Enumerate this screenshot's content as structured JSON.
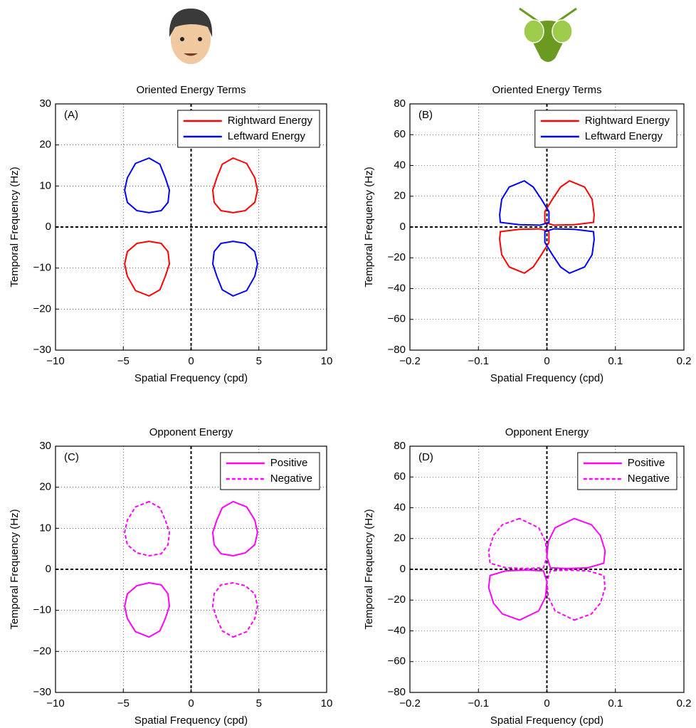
{
  "chart_data": [
    {
      "type": "line",
      "title": "Oriented Energy Terms",
      "panel_label": "(A)",
      "xlabel": "Spatial Frequency (cpd)",
      "ylabel": "Temporal Frequency (Hz)",
      "xlim": [
        -10,
        10
      ],
      "ylim": [
        -30,
        30
      ],
      "xticks": [
        {
          "value": -10,
          "label": "−10"
        },
        {
          "value": -5,
          "label": "−5"
        },
        0,
        5,
        10
      ],
      "yticks": [
        {
          "value": -30,
          "label": "−30"
        },
        {
          "value": -20,
          "label": "−20"
        },
        {
          "value": -10,
          "label": "−10"
        },
        0,
        10,
        20,
        30
      ],
      "grid": true,
      "legend": "upper right",
      "series": [
        {
          "name": "Rightward Energy",
          "color": "#ff0000",
          "dash": false,
          "contours": [
            {
              "x": [
                3.1,
                4.1,
                4.7,
                4.9,
                4.7,
                4.0,
                3.1,
                2.2,
                1.7,
                1.6,
                1.9,
                2.3
              ],
              "y": [
                16.8,
                15.5,
                12,
                9,
                6,
                4,
                3.5,
                4,
                6,
                9,
                12,
                15.3
              ]
            },
            {
              "x": [
                -3.1,
                -4.1,
                -4.7,
                -4.9,
                -4.7,
                -4.0,
                -3.1,
                -2.2,
                -1.7,
                -1.6,
                -1.9,
                -2.3
              ],
              "y": [
                -16.8,
                -15.5,
                -12,
                -9,
                -6,
                -4,
                -3.5,
                -4,
                -6,
                -9,
                -12,
                -15.3
              ]
            }
          ]
        },
        {
          "name": "Leftward Energy",
          "color": "#0000ff",
          "dash": false,
          "contours": [
            {
              "x": [
                -3.1,
                -4.1,
                -4.7,
                -4.9,
                -4.7,
                -4.0,
                -3.1,
                -2.2,
                -1.7,
                -1.6,
                -1.9,
                -2.3
              ],
              "y": [
                16.8,
                15.5,
                12,
                9,
                6,
                4,
                3.5,
                4,
                6,
                9,
                12,
                15.3
              ]
            },
            {
              "x": [
                3.1,
                4.1,
                4.7,
                4.9,
                4.7,
                4.0,
                3.1,
                2.2,
                1.7,
                1.6,
                1.9,
                2.3
              ],
              "y": [
                -16.8,
                -15.5,
                -12,
                -9,
                -6,
                -4,
                -3.5,
                -4,
                -6,
                -9,
                -12,
                -15.3
              ]
            }
          ]
        }
      ]
    },
    {
      "type": "line",
      "title": "Oriented Energy Terms",
      "panel_label": "(B)",
      "xlabel": "Spatial Frequency (cpd)",
      "ylabel": "Temporal Frequency (Hz)",
      "xlim": [
        -0.2,
        0.2
      ],
      "ylim": [
        -80,
        80
      ],
      "xticks": [
        {
          "value": -0.2,
          "label": "−0.2"
        },
        {
          "value": -0.1,
          "label": "−0.1"
        },
        0,
        0.1,
        0.2
      ],
      "yticks": [
        {
          "value": -80,
          "label": "−80"
        },
        {
          "value": -60,
          "label": "−60"
        },
        {
          "value": -40,
          "label": "−40"
        },
        {
          "value": -20,
          "label": "−20"
        },
        0,
        20,
        40,
        60,
        80
      ],
      "grid": true,
      "legend": "upper right",
      "series": [
        {
          "name": "Rightward Energy",
          "color": "#ff0000",
          "dash": false,
          "contours": [
            {
              "x": [
                0.033,
                0.055,
                0.066,
                0.069,
                0.068,
                0.04,
                0.01,
                -0.003,
                -0.003,
                0.008,
                0.02
              ],
              "y": [
                30,
                26,
                18,
                8,
                3,
                1.5,
                1.2,
                3,
                10,
                18,
                26
              ]
            },
            {
              "x": [
                -0.033,
                -0.055,
                -0.066,
                -0.069,
                -0.068,
                -0.04,
                -0.01,
                0.003,
                0.003,
                -0.008,
                -0.02
              ],
              "y": [
                -30,
                -26,
                -18,
                -8,
                -3,
                -1.5,
                -1.2,
                -3,
                -10,
                -18,
                -26
              ]
            }
          ]
        },
        {
          "name": "Leftward Energy",
          "color": "#0000ff",
          "dash": false,
          "contours": [
            {
              "x": [
                -0.033,
                -0.055,
                -0.066,
                -0.069,
                -0.068,
                -0.04,
                -0.01,
                0.003,
                0.003,
                -0.008,
                -0.02
              ],
              "y": [
                30,
                26,
                18,
                8,
                3,
                1.5,
                1.2,
                3,
                10,
                18,
                26
              ]
            },
            {
              "x": [
                0.033,
                0.055,
                0.066,
                0.069,
                0.068,
                0.04,
                0.01,
                -0.003,
                -0.003,
                0.008,
                0.02
              ],
              "y": [
                -30,
                -26,
                -18,
                -8,
                -3,
                -1.5,
                -1.2,
                -3,
                -10,
                -18,
                -26
              ]
            }
          ]
        }
      ]
    },
    {
      "type": "line",
      "title": "Opponent Energy",
      "panel_label": "(C)",
      "xlabel": "Spatial Frequency (cpd)",
      "ylabel": "Temporal Frequency (Hz)",
      "xlim": [
        -10,
        10
      ],
      "ylim": [
        -30,
        30
      ],
      "xticks": [
        {
          "value": -10,
          "label": "−10"
        },
        {
          "value": -5,
          "label": "−5"
        },
        0,
        5,
        10
      ],
      "yticks": [
        {
          "value": -30,
          "label": "−30"
        },
        {
          "value": -20,
          "label": "−20"
        },
        {
          "value": -10,
          "label": "−10"
        },
        0,
        10,
        20,
        30
      ],
      "grid": true,
      "legend": "upper right",
      "series": [
        {
          "name": "Positive",
          "color": "#ff00ff",
          "dash": false,
          "contours": [
            {
              "x": [
                3.1,
                4.1,
                4.7,
                4.9,
                4.7,
                4.0,
                3.1,
                2.2,
                1.7,
                1.6,
                1.9,
                2.3
              ],
              "y": [
                16.5,
                15.2,
                12,
                9,
                6,
                4,
                3.3,
                3.8,
                6,
                9,
                12,
                15
              ]
            },
            {
              "x": [
                -3.1,
                -4.1,
                -4.7,
                -4.9,
                -4.7,
                -4.0,
                -3.1,
                -2.2,
                -1.7,
                -1.6,
                -1.9,
                -2.3
              ],
              "y": [
                -16.5,
                -15.2,
                -12,
                -9,
                -6,
                -4,
                -3.3,
                -3.8,
                -6,
                -9,
                -12,
                -15
              ]
            }
          ]
        },
        {
          "name": "Negative",
          "color": "#ff00ff",
          "dash": true,
          "contours": [
            {
              "x": [
                -3.1,
                -4.1,
                -4.7,
                -4.9,
                -4.7,
                -4.0,
                -3.1,
                -2.2,
                -1.7,
                -1.6,
                -1.9,
                -2.3
              ],
              "y": [
                16.5,
                15.2,
                12,
                9,
                6,
                4,
                3.3,
                3.8,
                6,
                9,
                12,
                15
              ]
            },
            {
              "x": [
                3.1,
                4.1,
                4.7,
                4.9,
                4.7,
                4.0,
                3.1,
                2.2,
                1.7,
                1.6,
                1.9,
                2.3
              ],
              "y": [
                -16.5,
                -15.2,
                -12,
                -9,
                -6,
                -4,
                -3.3,
                -3.8,
                -6,
                -9,
                -12,
                -15
              ]
            }
          ]
        }
      ]
    },
    {
      "type": "line",
      "title": "Opponent Energy",
      "panel_label": "(D)",
      "xlabel": "Spatial Frequency (cpd)",
      "ylabel": "Temporal Frequency (Hz)",
      "xlim": [
        -0.2,
        0.2
      ],
      "ylim": [
        -80,
        80
      ],
      "xticks": [
        {
          "value": -0.2,
          "label": "−0.2"
        },
        {
          "value": -0.1,
          "label": "−0.1"
        },
        0,
        0.1,
        0.2
      ],
      "yticks": [
        {
          "value": -80,
          "label": "−80"
        },
        {
          "value": -60,
          "label": "−60"
        },
        {
          "value": -40,
          "label": "−40"
        },
        {
          "value": -20,
          "label": "−20"
        },
        0,
        20,
        40,
        60,
        80
      ],
      "grid": true,
      "legend": "upper right",
      "series": [
        {
          "name": "Positive",
          "color": "#ff00ff",
          "dash": false,
          "contours": [
            {
              "x": [
                0.04,
                0.065,
                0.078,
                0.085,
                0.083,
                0.06,
                0.03,
                0.005,
                0,
                0.002,
                0.012
              ],
              "y": [
                33,
                29,
                22,
                12,
                4,
                1,
                0.5,
                1,
                8,
                18,
                27
              ]
            },
            {
              "x": [
                -0.04,
                -0.065,
                -0.078,
                -0.085,
                -0.083,
                -0.06,
                -0.03,
                -0.005,
                0,
                -0.002,
                -0.012
              ],
              "y": [
                -33,
                -29,
                -22,
                -12,
                -4,
                -1,
                -0.5,
                -1,
                -8,
                -18,
                -27
              ]
            }
          ]
        },
        {
          "name": "Negative",
          "color": "#ff00ff",
          "dash": true,
          "contours": [
            {
              "x": [
                -0.04,
                -0.065,
                -0.078,
                -0.085,
                -0.083,
                -0.06,
                -0.03,
                -0.005,
                0,
                -0.002,
                -0.012
              ],
              "y": [
                33,
                29,
                22,
                12,
                4,
                1,
                0.5,
                1,
                8,
                18,
                27
              ]
            },
            {
              "x": [
                0.04,
                0.065,
                0.078,
                0.085,
                0.083,
                0.06,
                0.03,
                0.005,
                0,
                0.002,
                0.012
              ],
              "y": [
                -33,
                -29,
                -22,
                -12,
                -4,
                -1,
                -0.5,
                -1,
                -8,
                -18,
                -27
              ]
            }
          ]
        }
      ]
    }
  ]
}
